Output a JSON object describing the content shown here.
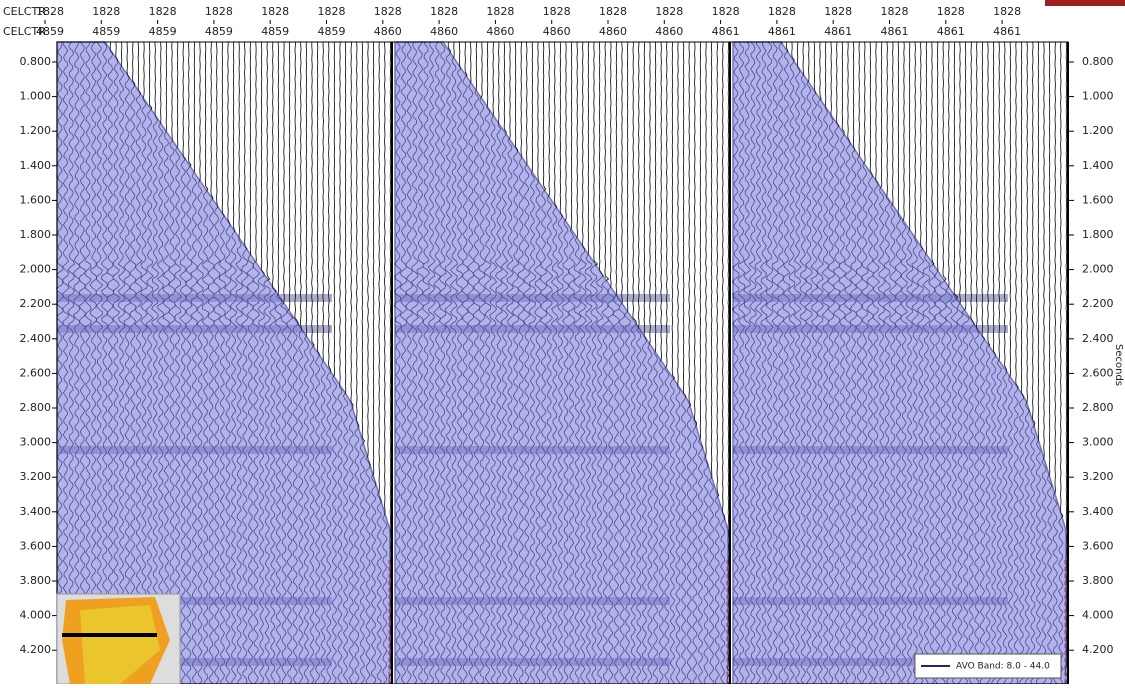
{
  "header": {
    "rows": [
      {
        "label": "CELCTR",
        "values": [
          "1828",
          "1828",
          "1828",
          "1828",
          "1828",
          "1828",
          "1828",
          "1828",
          "1828",
          "1828",
          "1828",
          "1828",
          "1828",
          "1828",
          "1828",
          "1828",
          "1828",
          "1828"
        ]
      },
      {
        "label": "CELCTR",
        "values": [
          "4859",
          "4859",
          "4859",
          "4859",
          "4859",
          "4859",
          "4860",
          "4860",
          "4860",
          "4860",
          "4860",
          "4860",
          "4861",
          "4861",
          "4861",
          "4861",
          "4861",
          "4861"
        ]
      }
    ]
  },
  "time_axis": {
    "label": "Seconds",
    "ticks": [
      "0.800",
      "1.000",
      "1.200",
      "1.400",
      "1.600",
      "1.800",
      "2.000",
      "2.200",
      "2.400",
      "2.600",
      "2.800",
      "3.000",
      "3.200",
      "3.400",
      "3.600",
      "3.800",
      "4.000",
      "4.200"
    ]
  },
  "legend": {
    "label": "AVO Band: 8.0 - 44.0"
  }
}
